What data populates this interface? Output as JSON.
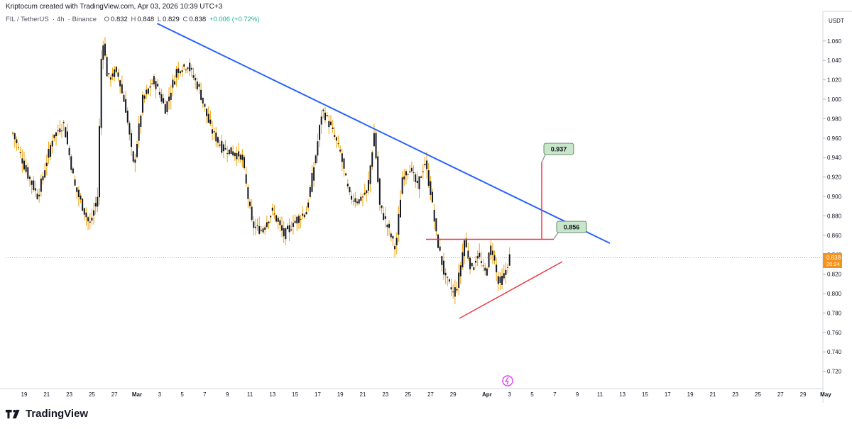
{
  "header": {
    "credit": "Kriptocum created with TradingView.com, Apr 03, 2026 10:39 UTC+3",
    "symbol": "FIL / TetherUS",
    "interval": "4h",
    "exchange": "Binance",
    "ohlc": {
      "o_label": "O",
      "o": "0.832",
      "h_label": "H",
      "h": "0.848",
      "l_label": "L",
      "l": "0.829",
      "c_label": "C",
      "c": "0.838",
      "change": "+0.006 (+0.72%)"
    }
  },
  "footer": {
    "brand": "TradingView"
  },
  "colors": {
    "up": "#131722",
    "down": "#131722",
    "wick": "#f0a30a",
    "trendline": "#2962ff",
    "annotation_red": "#f23645",
    "price_line": "#f7a600",
    "label_bg": "#c8e6c9",
    "label_border": "#4a6b4c"
  },
  "chart_data": {
    "type": "candlestick",
    "title": "",
    "y_axis": {
      "unit_label": "USDT",
      "range": [
        0.7,
        1.08
      ],
      "ticks": [
        "0.720",
        "0.740",
        "0.760",
        "0.780",
        "0.800",
        "0.820",
        "0.840",
        "0.860",
        "0.880",
        "0.900",
        "0.920",
        "0.940",
        "0.960",
        "0.980",
        "1.000",
        "1.020",
        "1.040",
        "1.060"
      ]
    },
    "x_axis": {
      "range_days": [
        0,
        103
      ],
      "ticks": [
        {
          "day": 1,
          "label": "19"
        },
        {
          "day": 3,
          "label": "21"
        },
        {
          "day": 5,
          "label": "23"
        },
        {
          "day": 7,
          "label": "25"
        },
        {
          "day": 9,
          "label": "27"
        },
        {
          "day": 11,
          "label": "Mar"
        },
        {
          "day": 13,
          "label": "3"
        },
        {
          "day": 15,
          "label": "5"
        },
        {
          "day": 17,
          "label": "7"
        },
        {
          "day": 19,
          "label": "9"
        },
        {
          "day": 21,
          "label": "11"
        },
        {
          "day": 23,
          "label": "13"
        },
        {
          "day": 25,
          "label": "15"
        },
        {
          "day": 27,
          "label": "17"
        },
        {
          "day": 29,
          "label": "19"
        },
        {
          "day": 31,
          "label": "21"
        },
        {
          "day": 33,
          "label": "23"
        },
        {
          "day": 35,
          "label": "25"
        },
        {
          "day": 37,
          "label": "27"
        },
        {
          "day": 39,
          "label": "29"
        },
        {
          "day": 42,
          "label": "Apr"
        },
        {
          "day": 44,
          "label": "3"
        },
        {
          "day": 46,
          "label": "5"
        },
        {
          "day": 48,
          "label": "7"
        },
        {
          "day": 50,
          "label": "9"
        },
        {
          "day": 52,
          "label": "11"
        },
        {
          "day": 54,
          "label": "13"
        },
        {
          "day": 56,
          "label": "15"
        },
        {
          "day": 58,
          "label": "17"
        },
        {
          "day": 60,
          "label": "19"
        },
        {
          "day": 62,
          "label": "21"
        },
        {
          "day": 64,
          "label": "23"
        },
        {
          "day": 66,
          "label": "25"
        },
        {
          "day": 68,
          "label": "27"
        },
        {
          "day": 70,
          "label": "29"
        },
        {
          "day": 72,
          "label": "May"
        }
      ]
    },
    "key_points": [
      {
        "day": 0.0,
        "price": 0.965
      },
      {
        "day": 1.2,
        "price": 0.925
      },
      {
        "day": 2.2,
        "price": 0.9
      },
      {
        "day": 3.5,
        "price": 0.96
      },
      {
        "day": 4.5,
        "price": 0.975
      },
      {
        "day": 5.5,
        "price": 0.91
      },
      {
        "day": 6.8,
        "price": 0.87
      },
      {
        "day": 7.5,
        "price": 0.9
      },
      {
        "day": 7.9,
        "price": 1.07
      },
      {
        "day": 8.4,
        "price": 1.02
      },
      {
        "day": 9.2,
        "price": 1.03
      },
      {
        "day": 10.0,
        "price": 0.99
      },
      {
        "day": 10.7,
        "price": 0.93
      },
      {
        "day": 11.5,
        "price": 1.0
      },
      {
        "day": 12.5,
        "price": 1.02
      },
      {
        "day": 13.5,
        "price": 0.99
      },
      {
        "day": 14.5,
        "price": 1.03
      },
      {
        "day": 15.5,
        "price": 1.035
      },
      {
        "day": 16.5,
        "price": 1.01
      },
      {
        "day": 17.5,
        "price": 0.97
      },
      {
        "day": 18.5,
        "price": 0.95
      },
      {
        "day": 19.5,
        "price": 0.945
      },
      {
        "day": 20.3,
        "price": 0.94
      },
      {
        "day": 21.2,
        "price": 0.87
      },
      {
        "day": 22.0,
        "price": 0.865
      },
      {
        "day": 23.0,
        "price": 0.885
      },
      {
        "day": 24.0,
        "price": 0.86
      },
      {
        "day": 25.0,
        "price": 0.875
      },
      {
        "day": 26.0,
        "price": 0.885
      },
      {
        "day": 26.8,
        "price": 0.94
      },
      {
        "day": 27.4,
        "price": 0.99
      },
      {
        "day": 28.2,
        "price": 0.97
      },
      {
        "day": 29.0,
        "price": 0.945
      },
      {
        "day": 29.8,
        "price": 0.9
      },
      {
        "day": 30.6,
        "price": 0.895
      },
      {
        "day": 31.4,
        "price": 0.905
      },
      {
        "day": 32.0,
        "price": 0.965
      },
      {
        "day": 32.5,
        "price": 0.89
      },
      {
        "day": 33.3,
        "price": 0.865
      },
      {
        "day": 33.9,
        "price": 0.845
      },
      {
        "day": 34.5,
        "price": 0.92
      },
      {
        "day": 35.2,
        "price": 0.93
      },
      {
        "day": 35.8,
        "price": 0.91
      },
      {
        "day": 36.5,
        "price": 0.935
      },
      {
        "day": 37.0,
        "price": 0.905
      },
      {
        "day": 37.5,
        "price": 0.86
      },
      {
        "day": 38.2,
        "price": 0.82
      },
      {
        "day": 39.0,
        "price": 0.8
      },
      {
        "day": 39.4,
        "price": 0.81
      },
      {
        "day": 40.0,
        "price": 0.855
      },
      {
        "day": 40.6,
        "price": 0.825
      },
      {
        "day": 41.2,
        "price": 0.84
      },
      {
        "day": 41.8,
        "price": 0.82
      },
      {
        "day": 42.4,
        "price": 0.85
      },
      {
        "day": 43.0,
        "price": 0.81
      },
      {
        "day": 43.5,
        "price": 0.818
      },
      {
        "day": 44.0,
        "price": 0.838
      }
    ],
    "current_price": {
      "value": "0.838",
      "countdown": "20:24"
    },
    "annotations": {
      "target_high": {
        "label": "0.937",
        "value": 0.937
      },
      "resistance": {
        "label": "0.856",
        "value": 0.856
      },
      "descending_trendline": {
        "from": {
          "day": 9.2,
          "price": 1.078
        },
        "to": {
          "day": 70.5,
          "price": 0.853
        }
      },
      "horizontal_resistance": {
        "from_day": 37.5,
        "to_day": 48.6,
        "price": 0.856
      },
      "ascending_support": {
        "from": {
          "day": 40.0,
          "price": 0.776
        },
        "to": {
          "day": 49.0,
          "price": 0.834
        }
      },
      "measure_line": {
        "day": 47.5,
        "from_price": 0.856,
        "to_price": 0.937
      }
    }
  }
}
